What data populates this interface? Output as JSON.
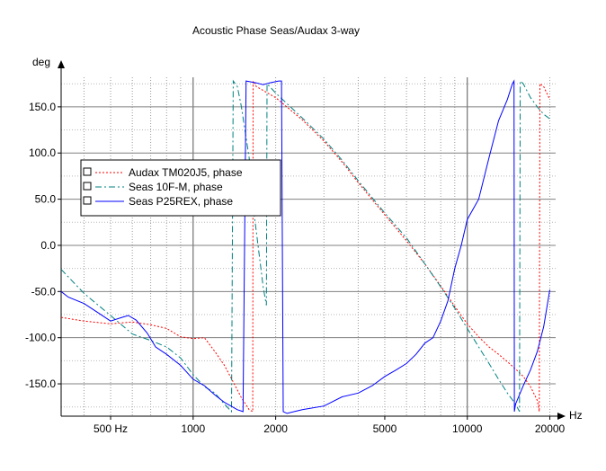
{
  "chart_data": {
    "type": "line",
    "title": "Acoustic Phase Seas/Audax 3-way",
    "ylabel": "deg",
    "xlabel": "Hz",
    "x_scale": "log",
    "xlim": [
      330,
      21000
    ],
    "ylim": [
      -185,
      182
    ],
    "grid": true,
    "legend_position": "upper-left",
    "x_tick_labels": [
      {
        "value": 500,
        "label": "500 Hz"
      },
      {
        "value": 1000,
        "label": "1000"
      },
      {
        "value": 2000,
        "label": "2000"
      },
      {
        "value": 5000,
        "label": "5000"
      },
      {
        "value": 10000,
        "label": "10000"
      },
      {
        "value": 20000,
        "label": "20000"
      }
    ],
    "y_tick_labels": [
      {
        "value": 150,
        "label": "150.0"
      },
      {
        "value": 100,
        "label": "100.0"
      },
      {
        "value": 50,
        "label": "50.0"
      },
      {
        "value": 0,
        "label": "0.0"
      },
      {
        "value": -50,
        "label": "-50.0"
      },
      {
        "value": -100,
        "label": "-100.0"
      },
      {
        "value": -150,
        "label": "-150.0"
      }
    ],
    "series": [
      {
        "name": "Audax TM020J5, phase",
        "color": "#ff0000",
        "dash": "dotted",
        "points": [
          [
            330,
            -78
          ],
          [
            400,
            -82
          ],
          [
            500,
            -85
          ],
          [
            600,
            -83
          ],
          [
            700,
            -86
          ],
          [
            800,
            -90
          ],
          [
            900,
            -99
          ],
          [
            1000,
            -101
          ],
          [
            1100,
            -100
          ],
          [
            1200,
            -115
          ],
          [
            1300,
            -130
          ],
          [
            1400,
            -148
          ],
          [
            1500,
            -165
          ],
          [
            1600,
            -178
          ],
          [
            1650,
            -180
          ],
          [
            1655,
            178
          ],
          [
            1700,
            172
          ],
          [
            2000,
            160
          ],
          [
            2500,
            136
          ],
          [
            3000,
            113
          ],
          [
            3500,
            90
          ],
          [
            4000,
            68
          ],
          [
            5000,
            33
          ],
          [
            6000,
            5
          ],
          [
            7000,
            -20
          ],
          [
            8000,
            -44
          ],
          [
            9000,
            -66
          ],
          [
            10000,
            -85
          ],
          [
            11000,
            -99
          ],
          [
            12000,
            -110
          ],
          [
            13000,
            -118
          ],
          [
            14000,
            -126
          ],
          [
            15000,
            -134
          ],
          [
            16000,
            -142
          ],
          [
            17000,
            -153
          ],
          [
            18000,
            -168
          ],
          [
            18300,
            -180
          ],
          [
            18400,
            175
          ],
          [
            19000,
            172
          ],
          [
            20000,
            158
          ]
        ]
      },
      {
        "name": "Seas 10F-M, phase",
        "color": "#008080",
        "dash": "dashdot",
        "points": [
          [
            330,
            -26
          ],
          [
            400,
            -52
          ],
          [
            500,
            -76
          ],
          [
            600,
            -96
          ],
          [
            700,
            -103
          ],
          [
            800,
            -110
          ],
          [
            900,
            -122
          ],
          [
            1000,
            -140
          ],
          [
            1100,
            -153
          ],
          [
            1200,
            -160
          ],
          [
            1300,
            -172
          ],
          [
            1380,
            -180
          ],
          [
            1400,
            178
          ],
          [
            1450,
            172
          ],
          [
            1500,
            150
          ],
          [
            1600,
            95
          ],
          [
            1650,
            45
          ],
          [
            1700,
            15
          ],
          [
            1750,
            -15
          ],
          [
            1800,
            -45
          ],
          [
            1850,
            -65
          ],
          [
            1860,
            175
          ],
          [
            2000,
            165
          ],
          [
            2500,
            138
          ],
          [
            3000,
            115
          ],
          [
            3500,
            92
          ],
          [
            4000,
            70
          ],
          [
            5000,
            35
          ],
          [
            6000,
            8
          ],
          [
            7000,
            -20
          ],
          [
            8000,
            -45
          ],
          [
            9000,
            -68
          ],
          [
            10000,
            -90
          ],
          [
            11000,
            -110
          ],
          [
            12000,
            -128
          ],
          [
            13000,
            -145
          ],
          [
            14000,
            -160
          ],
          [
            15000,
            -172
          ],
          [
            15500,
            -180
          ],
          [
            15600,
            178
          ],
          [
            16000,
            175
          ],
          [
            17000,
            160
          ],
          [
            18000,
            150
          ],
          [
            19000,
            142
          ],
          [
            20000,
            137
          ]
        ]
      },
      {
        "name": "Seas P25REX, phase",
        "color": "#0000ff",
        "dash": "solid",
        "points": [
          [
            330,
            -50
          ],
          [
            350,
            -56
          ],
          [
            400,
            -63
          ],
          [
            450,
            -73
          ],
          [
            500,
            -82
          ],
          [
            550,
            -78
          ],
          [
            580,
            -76
          ],
          [
            620,
            -81
          ],
          [
            680,
            -95
          ],
          [
            730,
            -110
          ],
          [
            800,
            -118
          ],
          [
            900,
            -130
          ],
          [
            1000,
            -145
          ],
          [
            1100,
            -152
          ],
          [
            1200,
            -162
          ],
          [
            1300,
            -170
          ],
          [
            1450,
            -178
          ],
          [
            1520,
            -180
          ],
          [
            1560,
            178
          ],
          [
            1700,
            176
          ],
          [
            1800,
            174
          ],
          [
            1900,
            176
          ],
          [
            2050,
            178
          ],
          [
            2100,
            178
          ],
          [
            2130,
            -180
          ],
          [
            2200,
            -182
          ],
          [
            2500,
            -178
          ],
          [
            3000,
            -174
          ],
          [
            3500,
            -164
          ],
          [
            4000,
            -160
          ],
          [
            4500,
            -152
          ],
          [
            5000,
            -142
          ],
          [
            5500,
            -135
          ],
          [
            6000,
            -128
          ],
          [
            6500,
            -118
          ],
          [
            7000,
            -106
          ],
          [
            7500,
            -100
          ],
          [
            8000,
            -82
          ],
          [
            8500,
            -60
          ],
          [
            9000,
            -25
          ],
          [
            9500,
            0
          ],
          [
            10000,
            28
          ],
          [
            11000,
            50
          ],
          [
            12000,
            95
          ],
          [
            13000,
            135
          ],
          [
            14000,
            158
          ],
          [
            14600,
            175
          ],
          [
            14800,
            178
          ],
          [
            14850,
            -180
          ],
          [
            15000,
            -172
          ],
          [
            16000,
            -152
          ],
          [
            17000,
            -135
          ],
          [
            18000,
            -115
          ],
          [
            19000,
            -88
          ],
          [
            20000,
            -48
          ]
        ]
      }
    ]
  }
}
